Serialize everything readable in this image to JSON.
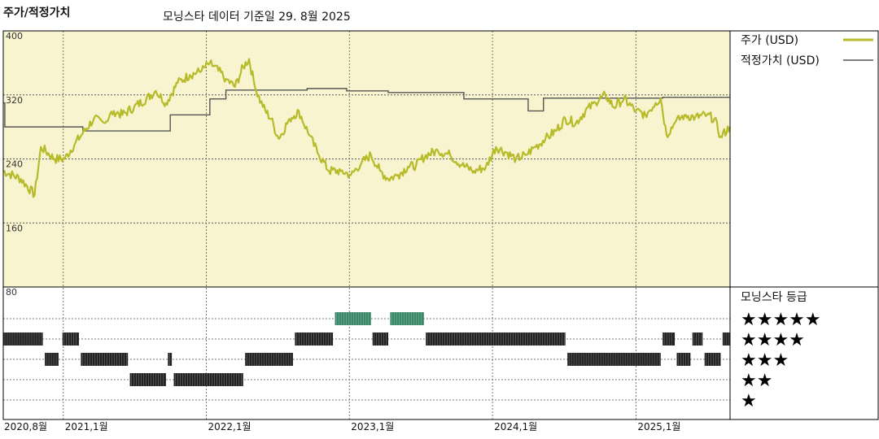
{
  "title": "주가/적정가치",
  "subtitle": "모닝스타 데이터 기준일 29. 8월 2025",
  "legend": {
    "price_label": "주가 (USD)",
    "fair_label": "적정가치 (USD)",
    "rating_title": "모닝스타 등급"
  },
  "colors": {
    "price_line": "#b7bb2a",
    "fair_line": "#555555",
    "plot_bg": "#f8f4cf",
    "bar_five": "#3a8a6a",
    "bar_other": "#222222"
  },
  "chart_data": {
    "type": "line",
    "xlabel": "",
    "ylabel": "",
    "ylim": [
      80,
      400
    ],
    "y_ticks": [
      80,
      160,
      240,
      320,
      400
    ],
    "x_range": [
      "2020-08-01",
      "2025-08-29"
    ],
    "x_ticks": [
      {
        "date": "2020-08-01",
        "label": "2020,8월"
      },
      {
        "date": "2021-01-01",
        "label": "2021,1월"
      },
      {
        "date": "2022-01-01",
        "label": "2022,1월"
      },
      {
        "date": "2023-01-01",
        "label": "2023,1월"
      },
      {
        "date": "2024-01-01",
        "label": "2024,1월"
      },
      {
        "date": "2025-01-01",
        "label": "2025,1월"
      }
    ],
    "series": [
      {
        "name": "주가 (USD)",
        "points": [
          [
            "2020-08-01",
            225
          ],
          [
            "2020-09-15",
            215
          ],
          [
            "2020-10-20",
            195
          ],
          [
            "2020-11-05",
            255
          ],
          [
            "2020-12-10",
            240
          ],
          [
            "2021-01-05",
            240
          ],
          [
            "2021-02-01",
            260
          ],
          [
            "2021-03-01",
            278
          ],
          [
            "2021-03-20",
            290
          ],
          [
            "2021-04-15",
            285
          ],
          [
            "2021-05-10",
            300
          ],
          [
            "2021-06-01",
            295
          ],
          [
            "2021-07-01",
            305
          ],
          [
            "2021-08-01",
            315
          ],
          [
            "2021-08-25",
            325
          ],
          [
            "2021-09-20",
            310
          ],
          [
            "2021-10-20",
            335
          ],
          [
            "2021-11-20",
            345
          ],
          [
            "2021-12-20",
            350
          ],
          [
            "2022-01-10",
            360
          ],
          [
            "2022-02-01",
            350
          ],
          [
            "2022-02-20",
            340
          ],
          [
            "2022-03-15",
            330
          ],
          [
            "2022-04-05",
            355
          ],
          [
            "2022-04-20",
            365
          ],
          [
            "2022-05-05",
            330
          ],
          [
            "2022-05-25",
            305
          ],
          [
            "2022-06-15",
            290
          ],
          [
            "2022-07-05",
            265
          ],
          [
            "2022-08-01",
            290
          ],
          [
            "2022-08-25",
            300
          ],
          [
            "2022-09-20",
            270
          ],
          [
            "2022-10-15",
            245
          ],
          [
            "2022-11-10",
            225
          ],
          [
            "2022-12-10",
            225
          ],
          [
            "2023-01-05",
            220
          ],
          [
            "2023-02-01",
            235
          ],
          [
            "2023-02-25",
            245
          ],
          [
            "2023-03-20",
            225
          ],
          [
            "2023-04-10",
            215
          ],
          [
            "2023-05-05",
            220
          ],
          [
            "2023-05-30",
            230
          ],
          [
            "2023-06-20",
            232
          ],
          [
            "2023-07-15",
            245
          ],
          [
            "2023-08-15",
            250
          ],
          [
            "2023-09-15",
            245
          ],
          [
            "2023-10-15",
            232
          ],
          [
            "2023-11-15",
            225
          ],
          [
            "2023-12-15",
            230
          ],
          [
            "2024-01-10",
            255
          ],
          [
            "2024-02-05",
            248
          ],
          [
            "2024-03-01",
            240
          ],
          [
            "2024-03-25",
            245
          ],
          [
            "2024-04-20",
            255
          ],
          [
            "2024-05-15",
            265
          ],
          [
            "2024-06-10",
            275
          ],
          [
            "2024-07-05",
            290
          ],
          [
            "2024-08-01",
            285
          ],
          [
            "2024-08-25",
            300
          ],
          [
            "2024-09-20",
            310
          ],
          [
            "2024-10-15",
            320
          ],
          [
            "2024-11-05",
            305
          ],
          [
            "2024-12-01",
            315
          ],
          [
            "2025-01-01",
            300
          ],
          [
            "2025-01-25",
            295
          ],
          [
            "2025-02-20",
            310
          ],
          [
            "2025-03-05",
            316
          ],
          [
            "2025-03-20",
            270
          ],
          [
            "2025-04-10",
            285
          ],
          [
            "2025-05-05",
            295
          ],
          [
            "2025-06-01",
            292
          ],
          [
            "2025-07-01",
            295
          ],
          [
            "2025-07-20",
            290
          ],
          [
            "2025-08-05",
            268
          ],
          [
            "2025-08-29",
            280
          ]
        ]
      },
      {
        "name": "적정가치 (USD)",
        "steps": [
          [
            "2020-08-01",
            310
          ],
          [
            "2020-08-05",
            280
          ],
          [
            "2021-02-20",
            275
          ],
          [
            "2021-10-01",
            295
          ],
          [
            "2022-01-10",
            315
          ],
          [
            "2022-02-20",
            326
          ],
          [
            "2022-09-15",
            328
          ],
          [
            "2022-12-25",
            325
          ],
          [
            "2023-04-10",
            323
          ],
          [
            "2023-10-20",
            315
          ],
          [
            "2024-04-01",
            300
          ],
          [
            "2024-05-10",
            316
          ],
          [
            "2025-03-10",
            317
          ],
          [
            "2025-08-29",
            317
          ]
        ]
      }
    ],
    "ratings": {
      "label": "모닝스타 등급",
      "levels": [
        "★★★★★",
        "★★★★",
        "★★★",
        "★★",
        "★"
      ],
      "segments": [
        {
          "stars": 4,
          "start": "2020-08-01",
          "end": "2020-11-10"
        },
        {
          "stars": 3,
          "start": "2020-11-15",
          "end": "2020-12-20"
        },
        {
          "stars": 4,
          "start": "2020-12-30",
          "end": "2021-02-10"
        },
        {
          "stars": 3,
          "start": "2021-02-15",
          "end": "2021-06-15"
        },
        {
          "stars": 2,
          "start": "2021-06-20",
          "end": "2021-09-20"
        },
        {
          "stars": 3,
          "start": "2021-09-25",
          "end": "2021-10-05"
        },
        {
          "stars": 2,
          "start": "2021-10-10",
          "end": "2022-04-05"
        },
        {
          "stars": 3,
          "start": "2022-04-10",
          "end": "2022-08-10"
        },
        {
          "stars": 4,
          "start": "2022-08-15",
          "end": "2022-11-20"
        },
        {
          "stars": 5,
          "start": "2022-11-25",
          "end": "2023-02-25"
        },
        {
          "stars": 4,
          "start": "2023-03-01",
          "end": "2023-04-10"
        },
        {
          "stars": 5,
          "start": "2023-04-15",
          "end": "2023-07-10"
        },
        {
          "stars": 4,
          "start": "2023-07-15",
          "end": "2024-07-05"
        },
        {
          "stars": 3,
          "start": "2024-07-10",
          "end": "2025-03-05"
        },
        {
          "stars": 4,
          "start": "2025-03-10",
          "end": "2025-04-10"
        },
        {
          "stars": 3,
          "start": "2025-04-15",
          "end": "2025-05-20"
        },
        {
          "stars": 4,
          "start": "2025-05-25",
          "end": "2025-06-20"
        },
        {
          "stars": 3,
          "start": "2025-06-25",
          "end": "2025-08-05"
        },
        {
          "stars": 4,
          "start": "2025-08-10",
          "end": "2025-08-29"
        }
      ]
    }
  }
}
